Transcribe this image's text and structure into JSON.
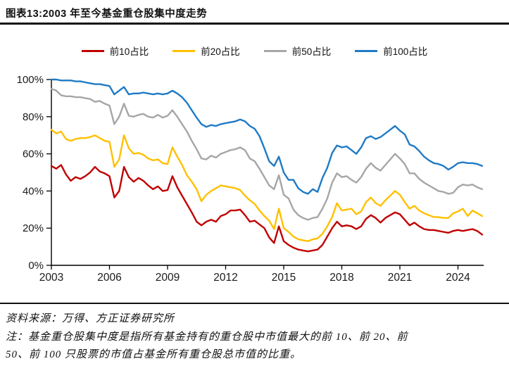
{
  "header": {
    "title": "图表13:2003 年至今基金重仓股集中度走势"
  },
  "legend": [
    {
      "label": "前10占比",
      "color": "#C00000"
    },
    {
      "label": "前20占比",
      "color": "#FFC000"
    },
    {
      "label": "前50占比",
      "color": "#A6A6A6"
    },
    {
      "label": "前100占比",
      "color": "#1F7AC5"
    }
  ],
  "chart_data": {
    "type": "line",
    "title": "2003 年至今基金重仓股集中度走势",
    "x_start": 2003,
    "x_step": 0.25,
    "x_unit": "year (quarterly)",
    "x_tick_values": [
      2003,
      2006,
      2009,
      2012,
      2015,
      2018,
      2021,
      2024
    ],
    "x_tick_labels": [
      "2003",
      "2006",
      "2009",
      "2012",
      "2015",
      "2018",
      "2021",
      "2024"
    ],
    "y_tick_values": [
      0,
      20,
      40,
      60,
      80,
      100
    ],
    "y_tick_labels": [
      "0%",
      "20%",
      "40%",
      "60%",
      "80%",
      "100%"
    ],
    "ylim": [
      0,
      100
    ],
    "grid": false,
    "legend_position": "top",
    "series": [
      {
        "name": "前10占比",
        "color": "#C00000",
        "values": [
          53.5,
          52,
          54,
          49,
          45.5,
          47.5,
          46.5,
          48,
          50,
          53,
          50.5,
          49.5,
          48,
          36.5,
          40,
          53,
          47.5,
          45,
          47,
          45.5,
          43,
          41,
          42.5,
          40,
          40.5,
          48,
          42,
          37.5,
          33,
          28.5,
          23.5,
          21.5,
          23.5,
          24.5,
          23.5,
          26.5,
          27.5,
          29.5,
          29.5,
          30,
          27,
          23.5,
          24,
          22,
          20,
          15,
          12,
          21,
          13,
          11,
          9.5,
          8.5,
          8,
          7.5,
          8,
          8.5,
          11,
          15.5,
          20,
          23.5,
          21,
          21.5,
          21,
          19.5,
          21,
          25,
          27,
          25.5,
          23,
          25.5,
          27,
          28.5,
          27.5,
          24.5,
          21.5,
          23,
          21,
          19.5,
          19,
          19,
          18.5,
          18,
          17.5,
          18.5,
          19,
          18.5,
          19,
          19.5,
          18.5,
          16.5
        ]
      },
      {
        "name": "前20占比",
        "color": "#FFC000",
        "values": [
          73,
          71,
          72,
          68,
          67,
          68,
          68.5,
          68.5,
          69,
          70,
          68.5,
          67,
          66.5,
          53,
          57,
          70,
          63,
          60,
          60.5,
          59.5,
          57.5,
          56.5,
          57,
          55,
          54.5,
          63.5,
          58.5,
          54,
          48.5,
          45,
          41,
          34.5,
          38,
          40,
          41.5,
          43,
          42.5,
          42,
          41.5,
          40.5,
          37.5,
          35,
          33,
          29.5,
          26.5,
          24,
          19.5,
          30.5,
          20,
          18,
          15.5,
          14,
          13.5,
          13,
          14,
          14.5,
          17,
          21,
          26,
          33.5,
          29.5,
          30,
          30.5,
          27.5,
          29,
          34,
          36.5,
          33.5,
          32,
          35,
          37.5,
          40,
          38,
          34,
          30.5,
          32,
          29.5,
          28,
          27,
          26,
          26,
          25.5,
          25.5,
          28,
          29,
          30.5,
          26.5,
          29.5,
          28,
          26.5
        ]
      },
      {
        "name": "前50占比",
        "color": "#A6A6A6",
        "values": [
          95,
          94,
          91.5,
          91,
          91,
          90.5,
          90.5,
          90,
          89.5,
          88,
          88.5,
          87,
          86,
          76,
          80,
          87,
          80.5,
          80,
          81,
          81.5,
          80,
          79.5,
          81,
          79.5,
          80.5,
          83.5,
          80,
          76,
          72,
          67,
          62.5,
          57.5,
          57,
          59,
          58,
          60,
          61,
          62,
          62.5,
          63.5,
          62,
          57.5,
          56,
          52,
          47.5,
          43,
          41,
          48.5,
          38,
          36,
          30,
          27,
          25.5,
          24.5,
          25.5,
          26,
          30.5,
          36,
          44.5,
          49.5,
          47.5,
          48,
          46,
          44.5,
          47.5,
          52,
          55,
          52.5,
          51,
          54,
          57,
          60,
          57.5,
          54.5,
          49.5,
          49.5,
          46.5,
          44.5,
          43,
          41.5,
          40,
          39.5,
          38.5,
          39,
          42,
          43.5,
          43,
          43.5,
          42,
          41
        ]
      },
      {
        "name": "前100占比",
        "color": "#1F7AC5",
        "values": [
          100,
          100,
          99.5,
          99.5,
          99.5,
          99,
          99,
          98.5,
          98,
          97.5,
          97.5,
          97,
          96.5,
          92,
          94,
          96,
          92,
          92.5,
          92.5,
          93,
          92.5,
          92,
          92.5,
          92,
          92.5,
          94,
          92.5,
          90.5,
          87.5,
          83.5,
          79.5,
          76,
          74.5,
          75.5,
          75,
          76,
          76.5,
          77,
          77.5,
          78.5,
          77.5,
          75,
          73.5,
          69.5,
          63,
          56,
          53.5,
          58.5,
          50,
          46,
          46,
          41.5,
          39.5,
          38.5,
          41,
          39.5,
          47,
          52.5,
          60.5,
          64.5,
          63.5,
          64,
          62,
          60,
          63.5,
          68.5,
          69.5,
          68,
          69,
          71,
          73,
          75,
          72.5,
          70.5,
          65,
          64,
          61.5,
          58.5,
          56.5,
          55,
          54.5,
          53.5,
          51.5,
          53,
          55,
          55.5,
          55,
          55,
          54.5,
          53.5
        ]
      }
    ]
  },
  "footer": {
    "source": "资料来源：万得、方正证券研究所",
    "note_line1": "注：基金重仓股集中度是指所有基金持有的重仓股中市值最大的前 10、前 20、前",
    "note_line2": "50、前 100 只股票的市值占基金所有重仓股总市值的比重。"
  }
}
